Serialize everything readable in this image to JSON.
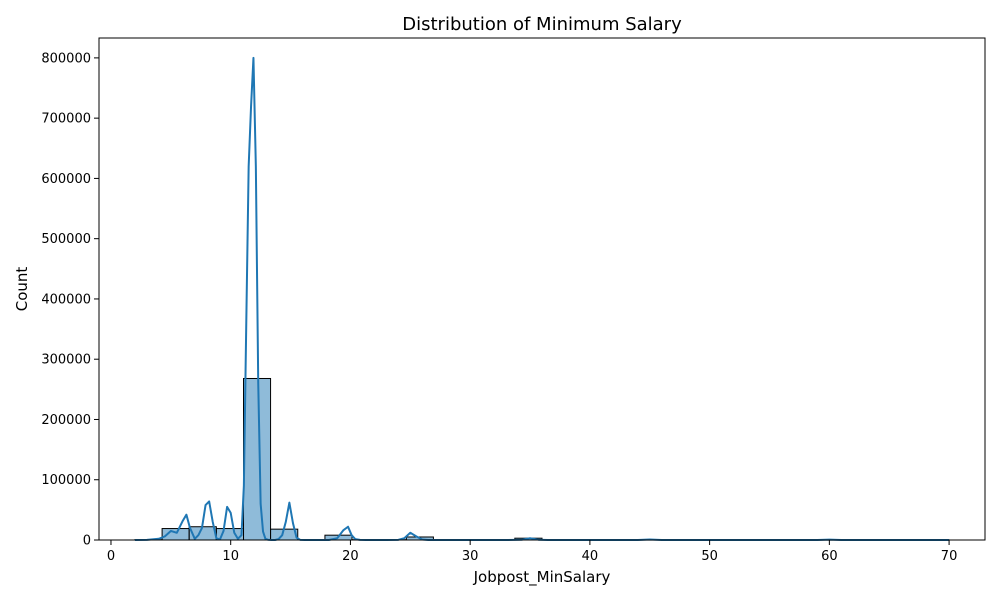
{
  "chart_data": {
    "type": "bar",
    "title": "Distribution of Minimum Salary",
    "xlabel": "Jobpost_MinSalary",
    "ylabel": "Count",
    "xlim": [
      -1,
      73
    ],
    "ylim": [
      0,
      833000
    ],
    "xticks": [
      0,
      10,
      20,
      30,
      40,
      50,
      60,
      70
    ],
    "yticks": [
      0,
      100000,
      200000,
      300000,
      400000,
      500000,
      600000,
      700000,
      800000
    ],
    "grid": false,
    "legend": "none",
    "colors": {
      "bar_fill": "#1f77b4",
      "bar_edge": "#000000",
      "kde_line": "#1f77b4"
    },
    "histogram": {
      "bin_edges": [
        2.0,
        4.27,
        6.53,
        8.8,
        11.07,
        13.33,
        15.6,
        17.87,
        20.13,
        22.4,
        24.67,
        26.93,
        29.2,
        31.47,
        33.73,
        36.0,
        38.27,
        40.53,
        42.8,
        45.07,
        47.33,
        49.6,
        51.87,
        54.13,
        56.4,
        58.67,
        60.93,
        63.2,
        65.47,
        67.73,
        70.0
      ],
      "counts": [
        500,
        19000,
        22000,
        19000,
        268000,
        18000,
        500,
        8000,
        500,
        500,
        5000,
        300,
        200,
        200,
        3000,
        500,
        100,
        100,
        100,
        500,
        100,
        100,
        100,
        100,
        100,
        300,
        100,
        100,
        100,
        200
      ]
    },
    "kde": {
      "x": [
        2,
        3,
        4,
        4.5,
        5,
        5.5,
        6,
        6.3,
        6.6,
        7,
        7.3,
        7.6,
        7.9,
        8.2,
        8.5,
        8.8,
        9.1,
        9.4,
        9.7,
        10,
        10.3,
        10.6,
        10.9,
        11.1,
        11.3,
        11.5,
        11.7,
        11.9,
        12.1,
        12.3,
        12.5,
        12.7,
        12.9,
        13.1,
        13.4,
        13.7,
        14.0,
        14.3,
        14.6,
        14.9,
        15.2,
        15.5,
        15.8,
        16.2,
        16.8,
        17.5,
        18.2,
        18.9,
        19.4,
        19.8,
        20.1,
        20.4,
        20.8,
        21.3,
        22.0,
        23.0,
        24.0,
        24.5,
        25.0,
        25.5,
        26.0,
        26.5,
        28.0,
        30.0,
        33.0,
        34.3,
        35.0,
        35.7,
        36.5,
        38.0,
        42.0,
        44.0,
        45.0,
        46.0,
        50.0,
        55.0,
        59.0,
        60.0,
        61.0,
        65.0,
        70.0
      ],
      "y": [
        0,
        200,
        2000,
        6000,
        15000,
        12000,
        32000,
        42000,
        20000,
        2000,
        8000,
        20000,
        58000,
        64000,
        30000,
        3000,
        800,
        15000,
        55000,
        45000,
        12000,
        2000,
        8000,
        90000,
        360000,
        620000,
        720000,
        800000,
        620000,
        260000,
        60000,
        14000,
        2000,
        500,
        0,
        0,
        1500,
        8000,
        30000,
        62000,
        28000,
        4000,
        300,
        0,
        0,
        0,
        0,
        3000,
        16000,
        22000,
        8000,
        1500,
        200,
        0,
        0,
        0,
        300,
        3000,
        12000,
        6000,
        800,
        0,
        0,
        0,
        0,
        400,
        3000,
        500,
        0,
        0,
        0,
        100,
        900,
        100,
        0,
        0,
        50,
        700,
        50,
        0,
        0
      ]
    }
  }
}
